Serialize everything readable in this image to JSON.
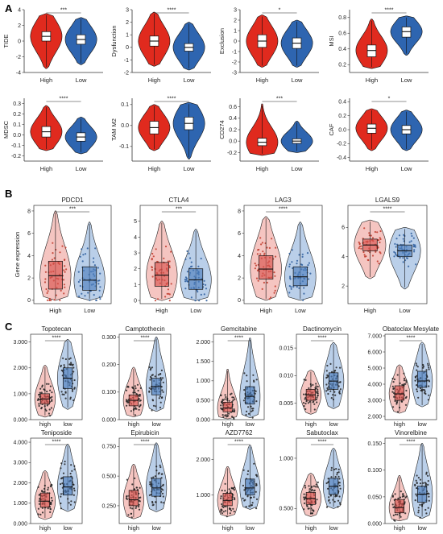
{
  "figure": {
    "panel_labels": [
      "A",
      "B",
      "C"
    ]
  },
  "colors": {
    "high_violin": "#e02a1e",
    "low_violin": "#2e65b0",
    "high_box": "#d9534f",
    "low_box": "#4f7fbf",
    "high_light": "#f3b7b1",
    "low_light": "#a9c3e3"
  },
  "chart_data": [
    {
      "panel": "A",
      "type": "violin",
      "title": "",
      "ylabel": "TIDE",
      "categories": [
        "High",
        "Low"
      ],
      "ylim": [
        -4,
        4
      ],
      "ticks": [
        -4,
        -2,
        0,
        2,
        4
      ],
      "tick_labels": [
        "-4",
        "-2",
        "0",
        "2",
        "4"
      ],
      "medians": [
        0.6,
        0.2
      ],
      "q1": [
        0.0,
        -0.4
      ],
      "q3": [
        1.2,
        0.8
      ],
      "range": [
        [
          -3.5,
          3.5
        ],
        [
          -3.0,
          3.0
        ]
      ],
      "significance": "***"
    },
    {
      "panel": "A",
      "type": "violin",
      "title": "",
      "ylabel": "Dysfunction",
      "categories": [
        "High",
        "Low"
      ],
      "ylim": [
        -2,
        3
      ],
      "ticks": [
        -2,
        -1,
        0,
        1,
        2,
        3
      ],
      "tick_labels": [
        "-2",
        "-1",
        "0",
        "1",
        "2",
        "3"
      ],
      "medians": [
        0.5,
        0.0
      ],
      "q1": [
        0.1,
        -0.3
      ],
      "q3": [
        0.9,
        0.3
      ],
      "range": [
        [
          -1.5,
          2.8
        ],
        [
          -1.8,
          2.0
        ]
      ],
      "significance": "****"
    },
    {
      "panel": "A",
      "type": "violin",
      "title": "",
      "ylabel": "Exclusion",
      "categories": [
        "High",
        "Low"
      ],
      "ylim": [
        -3,
        3
      ],
      "ticks": [
        -3,
        -2,
        -1,
        0,
        1,
        2,
        3
      ],
      "tick_labels": [
        "-3",
        "-2",
        "-1",
        "0",
        "1",
        "2",
        "3"
      ],
      "medians": [
        0.0,
        -0.2
      ],
      "q1": [
        -0.6,
        -0.7
      ],
      "q3": [
        0.6,
        0.3
      ],
      "range": [
        [
          -2.5,
          2.5
        ],
        [
          -2.5,
          2.0
        ]
      ],
      "significance": "*"
    },
    {
      "panel": "A",
      "type": "violin",
      "title": "",
      "ylabel": "MSI",
      "categories": [
        "High",
        "Low"
      ],
      "ylim": [
        0.1,
        0.9
      ],
      "ticks": [
        0.2,
        0.4,
        0.6,
        0.8
      ],
      "tick_labels": [
        "0.2",
        "0.4",
        "0.6",
        "0.8"
      ],
      "medians": [
        0.38,
        0.62
      ],
      "q1": [
        0.3,
        0.55
      ],
      "q3": [
        0.45,
        0.68
      ],
      "range": [
        [
          0.15,
          0.78
        ],
        [
          0.32,
          0.82
        ]
      ],
      "significance": "****"
    },
    {
      "panel": "A",
      "type": "violin",
      "title": "",
      "ylabel": "MDSC",
      "categories": [
        "High",
        "Low"
      ],
      "ylim": [
        -0.25,
        0.35
      ],
      "ticks": [
        -0.2,
        -0.1,
        0.0,
        0.1,
        0.2,
        0.3
      ],
      "tick_labels": [
        "-0.2",
        "-0.1",
        "0.0",
        "0.1",
        "0.2",
        "0.3"
      ],
      "medians": [
        0.03,
        -0.02
      ],
      "q1": [
        -0.02,
        -0.06
      ],
      "q3": [
        0.08,
        0.02
      ],
      "range": [
        [
          -0.15,
          0.28
        ],
        [
          -0.18,
          0.17
        ]
      ],
      "significance": "****"
    },
    {
      "panel": "A",
      "type": "violin",
      "title": "",
      "ylabel": "TAM M2",
      "categories": [
        "High",
        "Low"
      ],
      "ylim": [
        -0.17,
        0.13
      ],
      "ticks": [
        -0.1,
        0.0,
        0.1
      ],
      "tick_labels": [
        "-0.1",
        "0.0",
        "0.1"
      ],
      "medians": [
        -0.01,
        0.01
      ],
      "q1": [
        -0.04,
        -0.02
      ],
      "q3": [
        0.02,
        0.04
      ],
      "range": [
        [
          -0.12,
          0.1
        ],
        [
          -0.16,
          0.11
        ]
      ],
      "significance": "****"
    },
    {
      "panel": "A",
      "type": "violin",
      "title": "",
      "ylabel": "CD274",
      "categories": [
        "High",
        "Low"
      ],
      "ylim": [
        -0.35,
        0.75
      ],
      "ticks": [
        -0.2,
        0.0,
        0.2,
        0.4,
        0.6
      ],
      "tick_labels": [
        "-0.2",
        "0.0",
        "0.2",
        "0.4",
        "0.6"
      ],
      "medians": [
        -0.02,
        0.0
      ],
      "q1": [
        -0.08,
        -0.04
      ],
      "q3": [
        0.05,
        0.04
      ],
      "range": [
        [
          -0.25,
          0.65
        ],
        [
          -0.2,
          0.35
        ]
      ],
      "significance": "***"
    },
    {
      "panel": "A",
      "type": "violin",
      "title": "",
      "ylabel": "CAF",
      "categories": [
        "High",
        "Low"
      ],
      "ylim": [
        -0.45,
        0.45
      ],
      "ticks": [
        -0.4,
        -0.2,
        0.0,
        0.2,
        0.4
      ],
      "tick_labels": [
        "-0.4",
        "-0.2",
        "0.0",
        "0.2",
        "0.4"
      ],
      "medians": [
        0.02,
        0.0
      ],
      "q1": [
        -0.05,
        -0.06
      ],
      "q3": [
        0.08,
        0.06
      ],
      "range": [
        [
          -0.3,
          0.3
        ],
        [
          -0.3,
          0.28
        ]
      ],
      "significance": "*"
    },
    {
      "panel": "B",
      "type": "violin",
      "title": "PDCD1",
      "ylabel": "Gene expression",
      "categories": [
        "High",
        "Low"
      ],
      "ylim": [
        -0.3,
        8.5
      ],
      "ticks": [
        0,
        2,
        4,
        6,
        8
      ],
      "tick_labels": [
        "0",
        "2",
        "4",
        "6",
        "8"
      ],
      "medians": [
        2.2,
        1.8
      ],
      "q1": [
        1.0,
        0.9
      ],
      "q3": [
        3.5,
        3.0
      ],
      "range": [
        [
          0.0,
          8.0
        ],
        [
          0.0,
          7.0
        ]
      ],
      "significance": "***"
    },
    {
      "panel": "B",
      "type": "violin",
      "title": "CTLA4",
      "ylabel": "",
      "categories": [
        "High",
        "Low"
      ],
      "ylim": [
        -0.2,
        6.0
      ],
      "ticks": [
        0,
        1,
        2,
        3,
        4,
        5
      ],
      "tick_labels": [
        "0",
        "1",
        "2",
        "3",
        "4",
        "5"
      ],
      "medians": [
        1.6,
        1.3
      ],
      "q1": [
        0.9,
        0.7
      ],
      "q3": [
        2.4,
        2.0
      ],
      "range": [
        [
          0.0,
          5.0
        ],
        [
          0.0,
          4.5
        ]
      ],
      "significance": "***"
    },
    {
      "panel": "B",
      "type": "violin",
      "title": "LAG3",
      "ylabel": "",
      "categories": [
        "High",
        "Low"
      ],
      "ylim": [
        -0.3,
        8.5
      ],
      "ticks": [
        0,
        2,
        4,
        6,
        8
      ],
      "tick_labels": [
        "0",
        "2",
        "4",
        "6",
        "8"
      ],
      "medians": [
        2.8,
        2.1
      ],
      "q1": [
        1.9,
        1.3
      ],
      "q3": [
        4.0,
        3.0
      ],
      "range": [
        [
          0.0,
          7.5
        ],
        [
          0.0,
          7.0
        ]
      ],
      "significance": "****"
    },
    {
      "panel": "B",
      "type": "violin",
      "title": "LGALS9",
      "ylabel": "",
      "categories": [
        "High",
        "Low"
      ],
      "ylim": [
        0.8,
        7.5
      ],
      "ticks": [
        2,
        4,
        6
      ],
      "tick_labels": [
        "2",
        "4",
        "6"
      ],
      "medians": [
        4.8,
        4.4
      ],
      "q1": [
        4.4,
        4.0
      ],
      "q3": [
        5.2,
        4.8
      ],
      "range": [
        [
          2.5,
          6.5
        ],
        [
          1.8,
          6.0
        ]
      ],
      "significance": "****"
    },
    {
      "panel": "C",
      "type": "violin",
      "title": "Topotecan",
      "ylabel": "",
      "categories": [
        "high",
        "low"
      ],
      "ylim": [
        0,
        3.3
      ],
      "ticks": [
        0,
        1,
        2,
        3
      ],
      "tick_labels": [
        "0.000",
        "1.000",
        "2.000",
        "3.000"
      ],
      "medians": [
        0.8,
        1.6
      ],
      "q1": [
        0.6,
        1.2
      ],
      "q3": [
        1.0,
        2.0
      ],
      "range": [
        [
          0.1,
          2.1
        ],
        [
          0.4,
          3.1
        ]
      ],
      "significance": "****"
    },
    {
      "panel": "C",
      "type": "violin",
      "title": "Camptothecin",
      "ylabel": "",
      "categories": [
        "high",
        "low"
      ],
      "ylim": [
        0,
        0.31
      ],
      "ticks": [
        0,
        0.1,
        0.2,
        0.3
      ],
      "tick_labels": [
        "0.000",
        "0.100",
        "0.200",
        "0.300"
      ],
      "medians": [
        0.07,
        0.12
      ],
      "q1": [
        0.05,
        0.09
      ],
      "q3": [
        0.09,
        0.15
      ],
      "range": [
        [
          0.01,
          0.19
        ],
        [
          0.03,
          0.3
        ]
      ],
      "significance": "****"
    },
    {
      "panel": "C",
      "type": "violin",
      "title": "Gemcitabine",
      "ylabel": "",
      "categories": [
        "high",
        "low"
      ],
      "ylim": [
        0,
        2.2
      ],
      "ticks": [
        0,
        0.5,
        1,
        1.5,
        2
      ],
      "tick_labels": [
        "0.000",
        "0.500",
        "1.000",
        "1.500",
        "2.000"
      ],
      "medians": [
        0.3,
        0.6
      ],
      "q1": [
        0.2,
        0.4
      ],
      "q3": [
        0.45,
        0.85
      ],
      "range": [
        [
          0.02,
          1.3
        ],
        [
          0.05,
          2.1
        ]
      ],
      "significance": "****"
    },
    {
      "panel": "C",
      "type": "violin",
      "title": "Dactinomycin",
      "ylabel": "",
      "categories": [
        "high",
        "low"
      ],
      "ylim": [
        0.002,
        0.0175
      ],
      "ticks": [
        0.005,
        0.01,
        0.015
      ],
      "tick_labels": [
        "0.005",
        "0.010",
        "0.015"
      ],
      "medians": [
        0.0065,
        0.009
      ],
      "q1": [
        0.0055,
        0.0075
      ],
      "q3": [
        0.0075,
        0.0105
      ],
      "range": [
        [
          0.003,
          0.011
        ],
        [
          0.004,
          0.016
        ]
      ],
      "significance": "****"
    },
    {
      "panel": "C",
      "type": "violin",
      "title": "Obatoclax Mesylate",
      "ylabel": "",
      "categories": [
        "high",
        "low"
      ],
      "ylim": [
        1.8,
        7.1
      ],
      "ticks": [
        2,
        3,
        4,
        5,
        6,
        7
      ],
      "tick_labels": [
        "2.000",
        "3.000",
        "4.000",
        "5.000",
        "6.000",
        "7.000"
      ],
      "medians": [
        3.4,
        4.2
      ],
      "q1": [
        3.0,
        3.8
      ],
      "q3": [
        3.9,
        4.8
      ],
      "range": [
        [
          2.2,
          5.2
        ],
        [
          2.6,
          6.6
        ]
      ],
      "significance": "****"
    },
    {
      "panel": "C",
      "type": "violin",
      "title": "Teniposide",
      "ylabel": "",
      "categories": [
        "high",
        "low"
      ],
      "ylim": [
        0,
        4.2
      ],
      "ticks": [
        0,
        1,
        2,
        3,
        4
      ],
      "tick_labels": [
        "0.000",
        "1.000",
        "2.000",
        "3.000",
        "4.000"
      ],
      "medians": [
        1.1,
        1.8
      ],
      "q1": [
        0.8,
        1.4
      ],
      "q3": [
        1.5,
        2.3
      ],
      "range": [
        [
          0.2,
          2.6
        ],
        [
          0.6,
          3.9
        ]
      ],
      "significance": "****"
    },
    {
      "panel": "C",
      "type": "violin",
      "title": "Epirubicin",
      "ylabel": "",
      "categories": [
        "high",
        "low"
      ],
      "ylim": [
        0.1,
        0.82
      ],
      "ticks": [
        0.25,
        0.5,
        0.75
      ],
      "tick_labels": [
        "0.250",
        "0.500",
        "0.750"
      ],
      "medians": [
        0.3,
        0.4
      ],
      "q1": [
        0.25,
        0.33
      ],
      "q3": [
        0.38,
        0.48
      ],
      "range": [
        [
          0.14,
          0.6
        ],
        [
          0.2,
          0.78
        ]
      ],
      "significance": "****"
    },
    {
      "panel": "C",
      "type": "violin",
      "title": "AZD7762",
      "ylabel": "",
      "categories": [
        "high",
        "low"
      ],
      "ylim": [
        0.2,
        2.6
      ],
      "ticks": [
        1,
        2
      ],
      "tick_labels": [
        "1.000",
        "2.000"
      ],
      "medians": [
        0.85,
        1.2
      ],
      "q1": [
        0.7,
        1.0
      ],
      "q3": [
        1.05,
        1.45
      ],
      "range": [
        [
          0.4,
          1.8
        ],
        [
          0.6,
          2.4
        ]
      ],
      "significance": "****"
    },
    {
      "panel": "C",
      "type": "violin",
      "title": "Sabutoclax",
      "ylabel": "",
      "categories": [
        "high",
        "low"
      ],
      "ylim": [
        0.35,
        1.2
      ],
      "ticks": [
        0.5,
        1.0
      ],
      "tick_labels": [
        "0.500",
        "1.000"
      ],
      "medians": [
        0.6,
        0.72
      ],
      "q1": [
        0.54,
        0.64
      ],
      "q3": [
        0.66,
        0.8
      ],
      "range": [
        [
          0.42,
          0.85
        ],
        [
          0.5,
          1.1
        ]
      ],
      "significance": "****"
    },
    {
      "panel": "C",
      "type": "violin",
      "title": "Vinorelbine",
      "ylabel": "",
      "categories": [
        "high",
        "low"
      ],
      "ylim": [
        0.0,
        0.16
      ],
      "ticks": [
        0.0,
        0.05,
        0.1,
        0.15
      ],
      "tick_labels": [
        "0.000",
        "0.050",
        "0.100",
        "0.150"
      ],
      "medians": [
        0.03,
        0.055
      ],
      "q1": [
        0.02,
        0.04
      ],
      "q3": [
        0.045,
        0.07
      ],
      "range": [
        [
          0.005,
          0.09
        ],
        [
          0.01,
          0.15
        ]
      ],
      "significance": "****"
    }
  ]
}
